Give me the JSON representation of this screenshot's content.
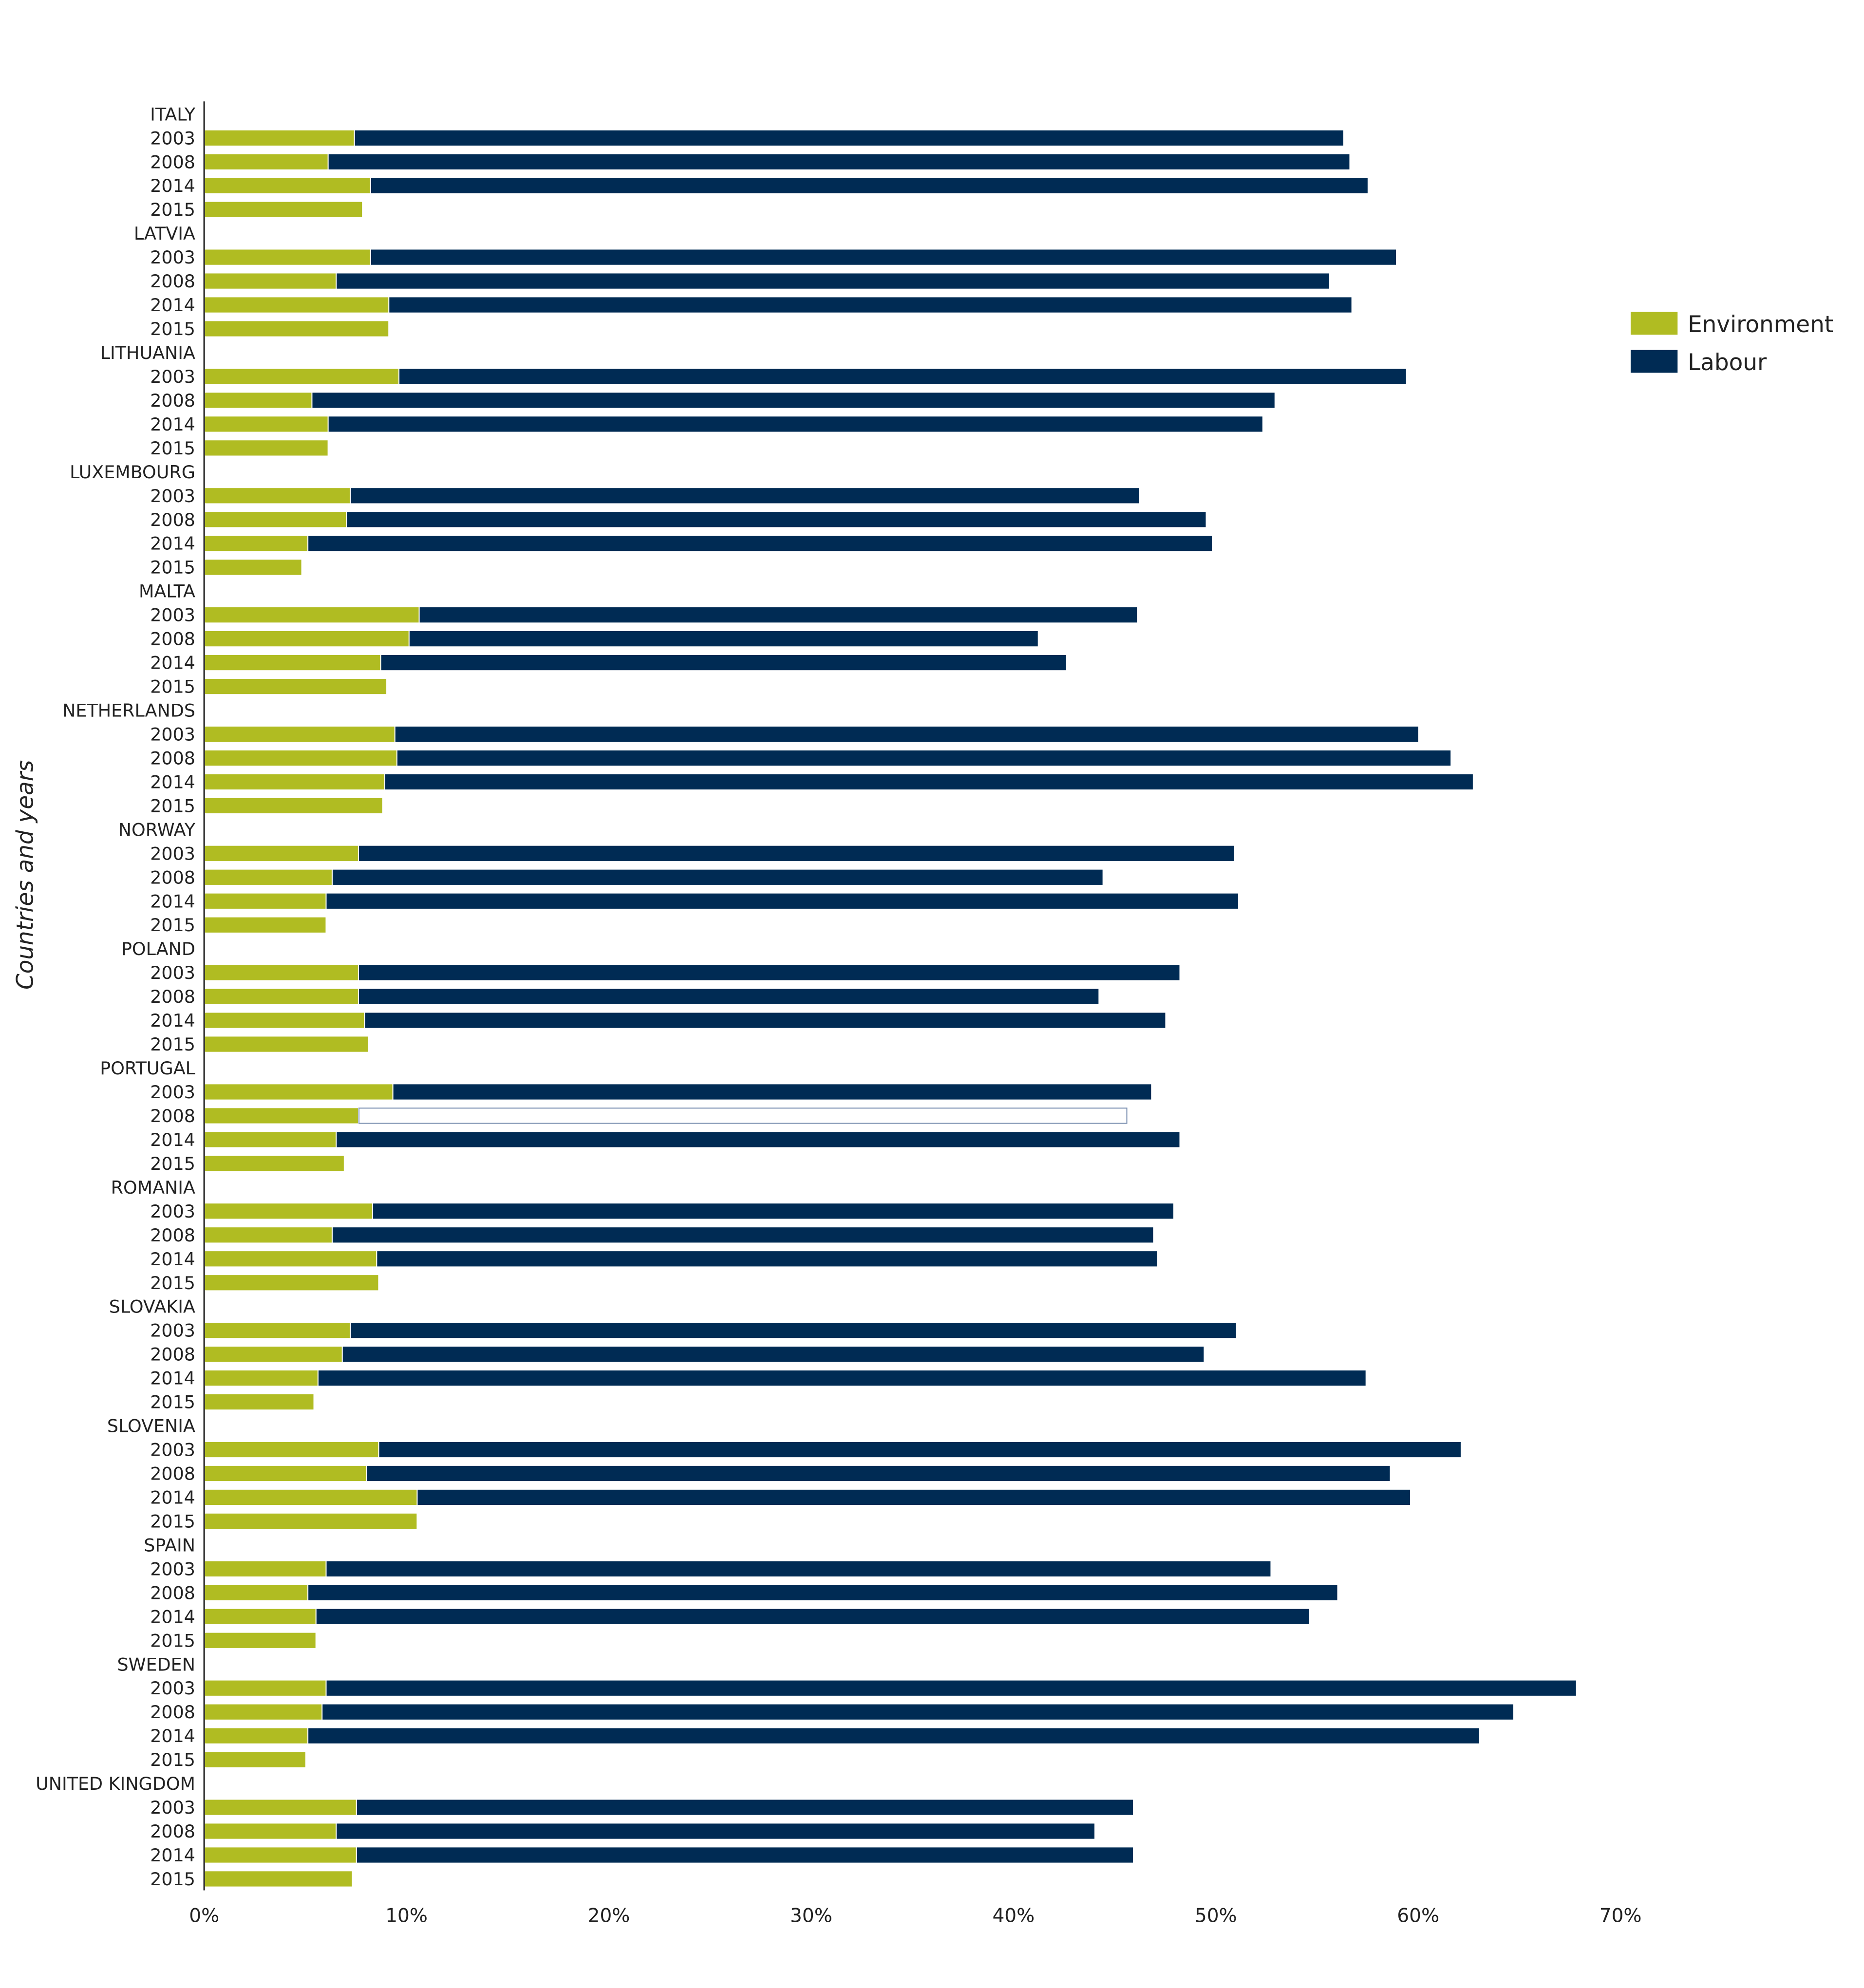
{
  "chart_data": {
    "type": "bar",
    "orientation": "horizontal",
    "stacked": true,
    "title": "",
    "xlabel": "",
    "ylabel": "Countries and years",
    "xlim": [
      0,
      70
    ],
    "x_ticks": [
      "0%",
      "10%",
      "20%",
      "30%",
      "40%",
      "50%",
      "60%",
      "70%"
    ],
    "grid": false,
    "legend_position": "right",
    "years": [
      "2003",
      "2008",
      "2014",
      "2015"
    ],
    "series": [
      {
        "name": "Environment",
        "color": "#b0bc22"
      },
      {
        "name": "Labour",
        "color": "#002b54"
      }
    ],
    "highlight": {
      "country": "PORTUGAL",
      "year": "2008",
      "series": "Labour"
    },
    "groups": [
      {
        "country": "ITALY",
        "environment": [
          7.4,
          6.1,
          8.2,
          7.8
        ],
        "labour": [
          48.9,
          50.5,
          49.3,
          null
        ]
      },
      {
        "country": "LATVIA",
        "environment": [
          8.2,
          6.5,
          9.1,
          9.1
        ],
        "labour": [
          50.7,
          49.1,
          47.6,
          null
        ]
      },
      {
        "country": "LITHUANIA",
        "environment": [
          9.6,
          5.3,
          6.1,
          6.1
        ],
        "labour": [
          49.8,
          47.6,
          46.2,
          null
        ]
      },
      {
        "country": "LUXEMBOURG",
        "environment": [
          7.2,
          7.0,
          5.1,
          4.8
        ],
        "labour": [
          39.0,
          42.5,
          44.7,
          null
        ]
      },
      {
        "country": "MALTA",
        "environment": [
          10.6,
          10.1,
          8.7,
          9.0
        ],
        "labour": [
          35.5,
          31.1,
          33.9,
          null
        ]
      },
      {
        "country": "NETHERLANDS",
        "environment": [
          9.4,
          9.5,
          8.9,
          8.8
        ],
        "labour": [
          50.6,
          52.1,
          53.8,
          null
        ]
      },
      {
        "country": "NORWAY",
        "environment": [
          7.6,
          6.3,
          6.0,
          6.0
        ],
        "labour": [
          43.3,
          38.1,
          45.1,
          null
        ]
      },
      {
        "country": "POLAND",
        "environment": [
          7.6,
          7.6,
          7.9,
          8.1
        ],
        "labour": [
          40.6,
          36.6,
          39.6,
          null
        ]
      },
      {
        "country": "PORTUGAL",
        "environment": [
          9.3,
          7.6,
          6.5,
          6.9
        ],
        "labour": [
          37.5,
          38.0,
          41.7,
          null
        ]
      },
      {
        "country": "ROMANIA",
        "environment": [
          8.3,
          6.3,
          8.5,
          8.6
        ],
        "labour": [
          39.6,
          40.6,
          38.6,
          null
        ]
      },
      {
        "country": "SLOVAKIA",
        "environment": [
          7.2,
          6.8,
          5.6,
          5.4
        ],
        "labour": [
          43.8,
          42.6,
          51.8,
          null
        ]
      },
      {
        "country": "SLOVENIA",
        "environment": [
          8.6,
          8.0,
          10.5,
          10.5
        ],
        "labour": [
          53.5,
          50.6,
          49.1,
          null
        ]
      },
      {
        "country": "SPAIN",
        "environment": [
          6.0,
          5.1,
          5.5,
          5.5
        ],
        "labour": [
          46.7,
          50.9,
          49.1,
          null
        ]
      },
      {
        "country": "SWEDEN",
        "environment": [
          6.0,
          5.8,
          5.1,
          5.0
        ],
        "labour": [
          61.8,
          58.9,
          57.9,
          null
        ]
      },
      {
        "country": "UNITED KINGDOM",
        "environment": [
          7.5,
          6.5,
          7.5,
          7.3
        ],
        "labour": [
          38.4,
          37.5,
          38.4,
          null
        ]
      }
    ]
  }
}
